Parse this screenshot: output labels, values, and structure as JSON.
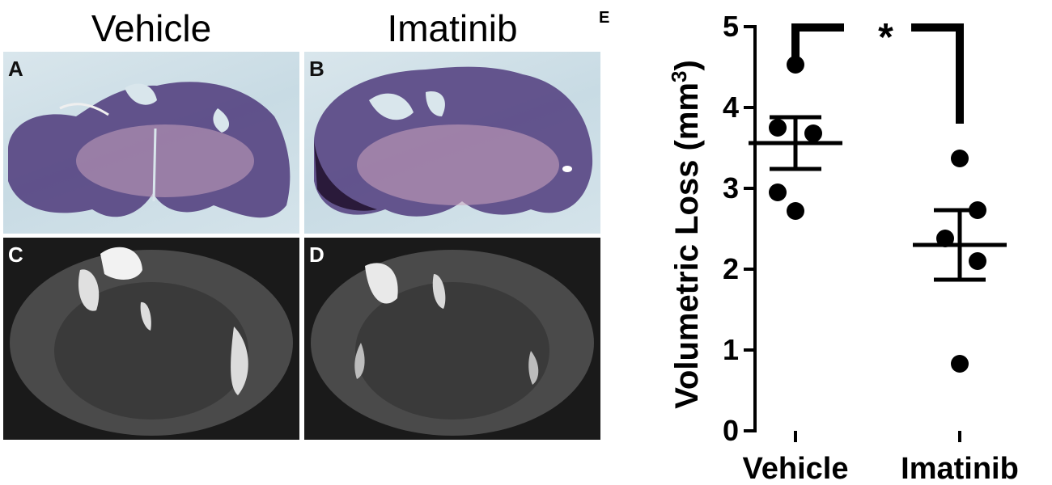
{
  "figure": {
    "column_titles": [
      "Vehicle",
      "Imatinib"
    ],
    "panel_labels": [
      "A",
      "B",
      "C",
      "D"
    ]
  },
  "chart_data": {
    "type": "scatter",
    "panel_label": "E",
    "categories": [
      "Vehicle",
      "Imatinib"
    ],
    "ylabel": "Volumetric Loss (mm",
    "ylabel_superscript": "3",
    "ylabel_close": ")",
    "ylim": [
      0,
      5
    ],
    "yticks": [
      0,
      1,
      2,
      3,
      4,
      5
    ],
    "series": [
      {
        "category": "Vehicle",
        "values": [
          4.53,
          3.75,
          3.68,
          2.95,
          2.72
        ],
        "mean": 3.56,
        "sem_upper": 3.88,
        "sem_lower": 3.24
      },
      {
        "category": "Imatinib",
        "values": [
          3.37,
          2.73,
          2.38,
          2.1,
          0.83
        ],
        "mean": 2.3,
        "sem_upper": 2.73,
        "sem_lower": 1.87
      }
    ],
    "significance": "*",
    "colors": {
      "points": "#000000",
      "axis": "#000000"
    }
  }
}
